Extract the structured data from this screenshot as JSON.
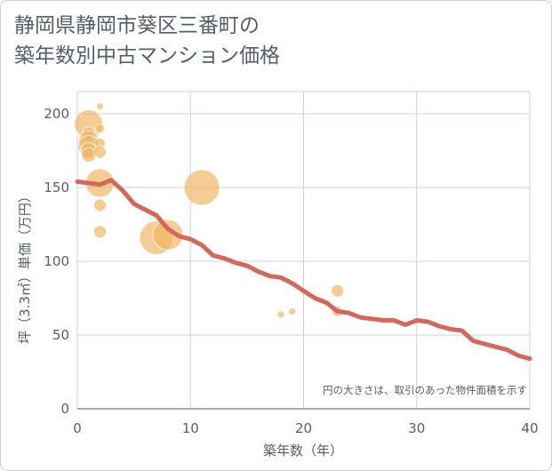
{
  "title_line1": "静岡県静岡市葵区三番町の",
  "title_line2": "築年数別中古マンション価格",
  "colors": {
    "bubble": "#f0b660",
    "line": "#d4685a",
    "grid": "#c9d3e0",
    "frame_bg": "#ffffff"
  },
  "chart_data": {
    "type": "scatter",
    "xlabel": "築年数（年）",
    "ylabel": "坪（3.3㎡）単価（万円）",
    "note": "円の大きさは、取引のあった物件面積を示す",
    "xlim": [
      0,
      40
    ],
    "ylim": [
      0,
      210
    ],
    "xticks": [
      0,
      10,
      20,
      30,
      40
    ],
    "yticks": [
      0,
      50,
      100,
      150,
      200
    ],
    "grid": true,
    "bubbles": [
      {
        "x": 1,
        "y": 193,
        "r": 16
      },
      {
        "x": 1,
        "y": 187,
        "r": 7
      },
      {
        "x": 1,
        "y": 182,
        "r": 11
      },
      {
        "x": 1,
        "y": 178,
        "r": 12
      },
      {
        "x": 1,
        "y": 175,
        "r": 9
      },
      {
        "x": 1,
        "y": 172,
        "r": 8
      },
      {
        "x": 2,
        "y": 205,
        "r": 4
      },
      {
        "x": 2,
        "y": 190,
        "r": 5
      },
      {
        "x": 2,
        "y": 180,
        "r": 6
      },
      {
        "x": 2,
        "y": 174,
        "r": 7
      },
      {
        "x": 2,
        "y": 153,
        "r": 16
      },
      {
        "x": 2,
        "y": 138,
        "r": 7
      },
      {
        "x": 2,
        "y": 120,
        "r": 7
      },
      {
        "x": 7,
        "y": 116,
        "r": 19
      },
      {
        "x": 8,
        "y": 118,
        "r": 17
      },
      {
        "x": 11,
        "y": 150,
        "r": 20
      },
      {
        "x": 18,
        "y": 64,
        "r": 4
      },
      {
        "x": 19,
        "y": 66,
        "r": 4
      },
      {
        "x": 23,
        "y": 80,
        "r": 7
      },
      {
        "x": 23,
        "y": 66,
        "r": 6
      }
    ],
    "series": [
      {
        "x": [
          0,
          1,
          2,
          3,
          4,
          5,
          6,
          7,
          8,
          9,
          10,
          11,
          12,
          13,
          14,
          15,
          16,
          17,
          18,
          19,
          20,
          21,
          22,
          23,
          24,
          25,
          26,
          27,
          28,
          29,
          30,
          31,
          32,
          33,
          34,
          35,
          36,
          37,
          38,
          39,
          40
        ],
        "values": [
          154,
          153,
          152,
          155,
          148,
          139,
          135,
          131,
          122,
          117,
          115,
          111,
          104,
          102,
          99,
          97,
          93,
          90,
          89,
          85,
          80,
          75,
          72,
          66,
          65,
          62,
          61,
          60,
          60,
          57,
          60,
          59,
          56,
          54,
          53,
          46,
          44,
          42,
          40,
          36,
          34
        ]
      }
    ]
  }
}
